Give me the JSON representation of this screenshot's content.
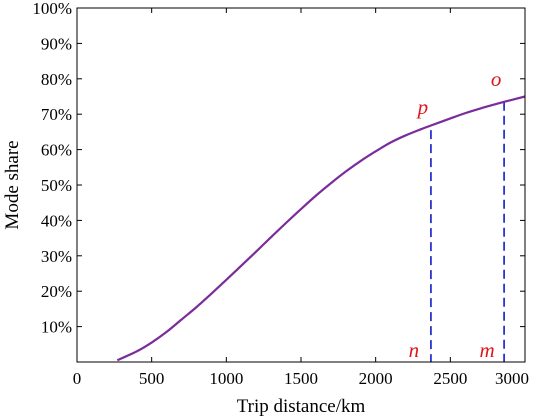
{
  "chart_data": {
    "type": "line",
    "xlabel": "Trip distance/km",
    "ylabel": "Mode share",
    "xlim": [
      0,
      3000
    ],
    "ylim": [
      0,
      100
    ],
    "x_ticks": [
      0,
      500,
      1000,
      1500,
      2000,
      2500,
      3000
    ],
    "x_tick_labels": [
      "0",
      "500",
      "1000",
      "1500",
      "2000",
      "2500",
      "3000"
    ],
    "y_ticks": [
      10,
      20,
      30,
      40,
      50,
      60,
      70,
      80,
      90,
      100
    ],
    "y_tick_labels": [
      "10%",
      "20%",
      "30%",
      "40%",
      "50%",
      "60%",
      "70%",
      "80%",
      "90%",
      "100%"
    ],
    "grid": false,
    "series": [
      {
        "color": "#7b2c9a",
        "x": [
          270,
          400,
          500,
          600,
          700,
          800,
          900,
          1000,
          1100,
          1200,
          1300,
          1400,
          1500,
          1600,
          1700,
          1800,
          1900,
          2000,
          2100,
          2200,
          2300,
          2370,
          2500,
          2600,
          2700,
          2800,
          2870,
          3000
        ],
        "y": [
          0.5,
          3.0,
          5.5,
          8.5,
          12.0,
          15.5,
          19.3,
          23.2,
          27.2,
          31.2,
          35.3,
          39.3,
          43.2,
          47.0,
          50.5,
          53.8,
          56.8,
          59.5,
          62.0,
          64.0,
          65.7,
          66.8,
          68.8,
          70.3,
          71.6,
          72.8,
          73.6,
          75.0
        ]
      }
    ],
    "annotations": [
      {
        "label": "p",
        "x": 2370,
        "y": 65.5,
        "dashed_drop_line": true
      },
      {
        "label": "o",
        "x": 2860,
        "y": 73.5,
        "dashed_drop_line": true
      },
      {
        "label": "n",
        "x": 2370,
        "y": 0
      },
      {
        "label": "m",
        "x": 2860,
        "y": 0
      }
    ],
    "colors": {
      "curve": "#7b2c9a",
      "drop_lines": "#2b35cc",
      "annotations": "#e0151b"
    }
  }
}
